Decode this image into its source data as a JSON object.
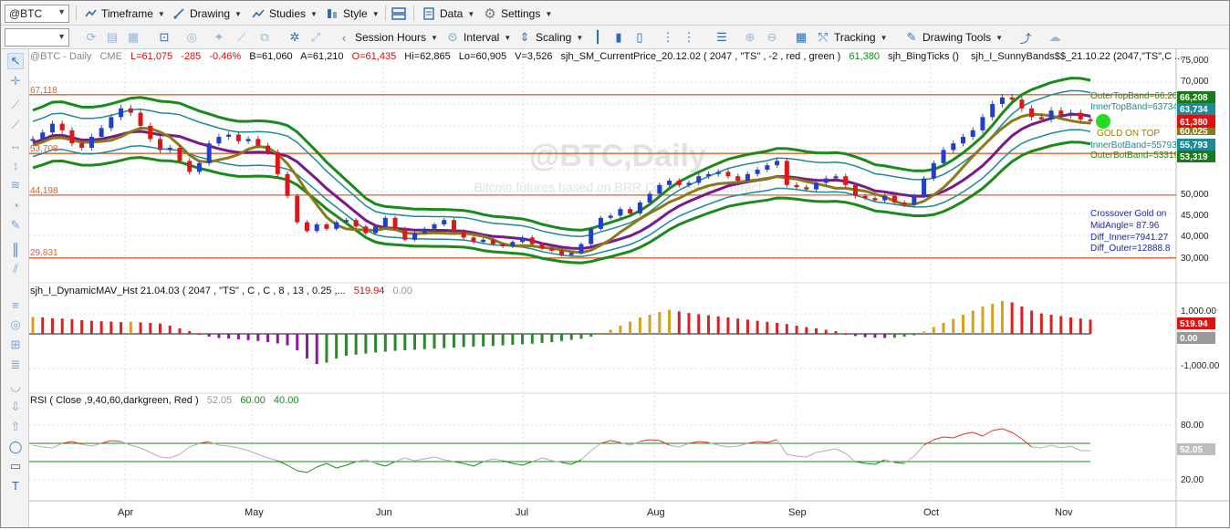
{
  "toolbar": {
    "symbol": "@BTC",
    "menus": [
      {
        "label": "Timeframe",
        "icon": "timeframe-icon"
      },
      {
        "label": "Drawing",
        "icon": "drawing-icon"
      },
      {
        "label": "Studies",
        "icon": "studies-icon"
      },
      {
        "label": "Style",
        "icon": "style-icon"
      },
      {
        "label": "Data",
        "icon": "data-icon"
      },
      {
        "label": "Settings",
        "icon": "settings-icon"
      }
    ],
    "row2": {
      "session_hours": "Session Hours",
      "interval": "Interval",
      "scaling": "Scaling",
      "tracking": "Tracking",
      "drawing_tools": "Drawing Tools"
    }
  },
  "colors": {
    "up_bar": "#1e3fd0",
    "down_bar": "#e01515",
    "outer_band": "#1a8a1a",
    "inner_band": "#1e8a96",
    "gold": "#8a7a18",
    "purple": "#7a1a8a",
    "hline": "#e06030",
    "rsi_up": "#e03030",
    "rsi_down": "#b0b0b0",
    "hist_red": "#e02020",
    "hist_gold": "#d4a020",
    "hist_green": "#2a8a2a",
    "hist_purple": "#8a1a9a"
  },
  "price_pane": {
    "watermark": "@BTC,Daily",
    "watermark_sub": "Bitcoin futures based on BRR Continuous Contract",
    "header": {
      "symbol": "@BTC - Daily",
      "exchange": "CME",
      "last": "L=61,075",
      "change": "-285",
      "pct": "-0.46%",
      "bid": "B=61,060",
      "ask": "A=61,210",
      "open": "O=61,435",
      "high": "Hi=62,865",
      "low": "Lo=60,905",
      "volume": "V=3,526",
      "study1": "sjh_SM_CurrentPrice_20.12.02 ( 2047 , \"TS\" , -2 , red , green )",
      "study1_value": "61,380",
      "study2": "sjh_BingTicks ()",
      "study3": "sjh_I_SunnyBands$$_21.10.22 (2047,\"TS\",C ..."
    },
    "hline_labels": [
      "67,118",
      "53,708",
      "44,198",
      "29,831"
    ],
    "band_labels": {
      "outer_top": "OuterTopBand=66,208",
      "inner_top": "InnerTopBand=63734",
      "gold_on_top": "GOLD ON TOP",
      "inner_bot": "InnerBotBand=55793",
      "outer_bot": "OuterBotBand=53319"
    },
    "info_box": [
      "Crossover Gold on",
      "MidAngle= 87.96",
      "Diff_Inner=7941.27",
      "Diff_Outer=12888.8"
    ],
    "axis_ticks": [
      "75,000",
      "70,000",
      "65,000",
      "60,000",
      "55,000",
      "50,000",
      "45,000",
      "40,000",
      "35,000",
      "30,000"
    ],
    "axis_badges": [
      "66,208",
      "63,734",
      "61,380",
      "60,025",
      "55,793",
      "53,319"
    ]
  },
  "hist_pane": {
    "title": "sjh_I_DynamicMAV_Hst 21.04.03 ( 2047 , \"TS\" , C , C ,  8 , 13 , 0.25 ,...",
    "value1": "519.94",
    "value2": "0.00",
    "axis_ticks": [
      "1,000.00",
      "-1,000.00"
    ],
    "axis_badges": [
      "519.94",
      "0.00"
    ]
  },
  "rsi_pane": {
    "title": "RSI ( Close ,9,40,60,darkgreen, Red )",
    "value": "52.05",
    "upper": "60.00",
    "lower": "40.00",
    "axis_ticks": [
      "80.00",
      "40.00",
      "20.00"
    ],
    "axis_badge": "52.05"
  },
  "x_axis": [
    "Apr",
    "May",
    "Jun",
    "Jul",
    "Aug",
    "Sep",
    "Oct",
    "Nov"
  ],
  "chart_data": {
    "type": "line",
    "title": "@BTC - Daily",
    "yscale": {
      "min": 25000,
      "max": 76000
    },
    "horizontal_lines": [
      67118,
      53708,
      44198,
      29831
    ],
    "months": [
      "Apr",
      "May",
      "Jun",
      "Jul",
      "Aug",
      "Sep",
      "Oct",
      "Nov"
    ],
    "close_approx": [
      57000,
      58500,
      60500,
      59000,
      56000,
      55000,
      57500,
      59500,
      62000,
      64000,
      63000,
      60000,
      57000,
      54500,
      55000,
      52000,
      49500,
      51500,
      56000,
      57500,
      58000,
      56500,
      57000,
      55500,
      54000,
      49000,
      44000,
      38000,
      36000,
      37500,
      36500,
      38000,
      38500,
      37000,
      35500,
      37000,
      39000,
      36500,
      34000,
      35500,
      36500,
      37500,
      38500,
      36000,
      34500,
      33500,
      34000,
      33000,
      32500,
      33500,
      34500,
      33000,
      32000,
      31500,
      30500,
      31000,
      33000,
      36500,
      39000,
      39500,
      41000,
      40000,
      42500,
      44500,
      46500,
      47500,
      46500,
      47000,
      48500,
      49000,
      49500,
      48500,
      47500,
      49000,
      50000,
      51000,
      52000,
      46500,
      46000,
      45500,
      47000,
      48000,
      48500,
      46500,
      44000,
      43500,
      43000,
      44000,
      42500,
      42000,
      44000,
      48000,
      51500,
      54500,
      56000,
      57500,
      59000,
      62000,
      65000,
      66500,
      66000,
      64000,
      62000,
      61500,
      63500,
      62500,
      63000,
      61500,
      61075
    ],
    "hist_values": [
      620,
      600,
      570,
      560,
      540,
      500,
      480,
      460,
      450,
      430,
      440,
      420,
      400,
      380,
      300,
      200,
      100,
      0,
      -100,
      -150,
      -170,
      -200,
      -230,
      -260,
      -300,
      -350,
      -420,
      -600,
      -900,
      -1100,
      -1050,
      -900,
      -800,
      -760,
      -720,
      -680,
      -650,
      -620,
      -600,
      -580,
      -560,
      -540,
      -520,
      -500,
      -480,
      -470,
      -460,
      -440,
      -420,
      -400,
      -380,
      -360,
      -330,
      -300,
      -260,
      -220,
      -180,
      -100,
      0,
      150,
      300,
      450,
      600,
      700,
      800,
      880,
      820,
      760,
      720,
      680,
      640,
      600,
      560,
      520,
      480,
      440,
      400,
      360,
      300,
      250,
      200,
      150,
      100,
      0,
      -80,
      -120,
      -140,
      -150,
      -140,
      -100,
      -50,
      80,
      250,
      400,
      550,
      700,
      850,
      1000,
      1100,
      1200,
      1150,
      1000,
      850,
      750,
      700,
      650,
      600,
      560,
      520
    ],
    "rsi_values": [
      58,
      56,
      55,
      60,
      62,
      59,
      57,
      60,
      63,
      62,
      58,
      55,
      50,
      45,
      44,
      48,
      56,
      60,
      62,
      58,
      57,
      55,
      52,
      48,
      44,
      41,
      36,
      30,
      28,
      34,
      38,
      33,
      36,
      40,
      42,
      38,
      35,
      40,
      44,
      41,
      43,
      45,
      42,
      40,
      38,
      35,
      40,
      43,
      41,
      38,
      36,
      40,
      44,
      41,
      39,
      37,
      42,
      52,
      60,
      63,
      61,
      58,
      62,
      64,
      63,
      58,
      56,
      60,
      62,
      61,
      58,
      56,
      57,
      60,
      62,
      61,
      64,
      48,
      46,
      45,
      50,
      52,
      54,
      49,
      40,
      38,
      37,
      42,
      39,
      38,
      46,
      58,
      64,
      67,
      66,
      70,
      72,
      68,
      74,
      76,
      72,
      65,
      56,
      55,
      58,
      55,
      57,
      52,
      52
    ]
  }
}
